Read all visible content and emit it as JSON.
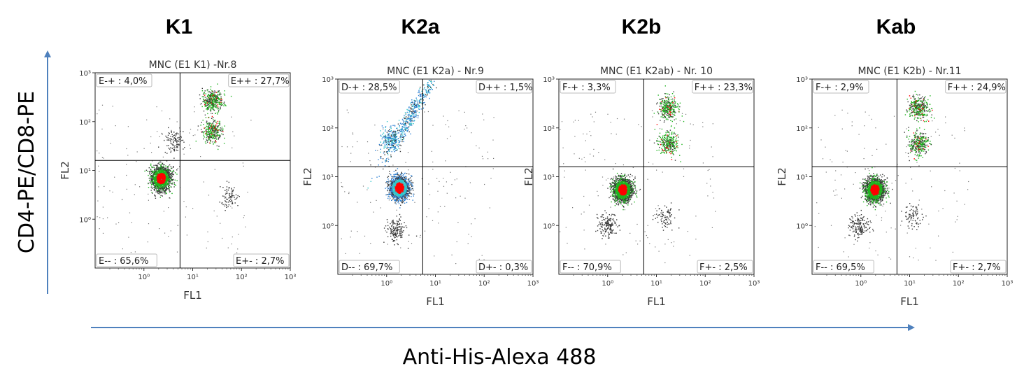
{
  "x_axis_label": "Anti-His-Alexa 488",
  "y_axis_label": "CD4-PE/CD8-PE",
  "colors": {
    "arrow": "#4f81bd",
    "frame": "#222222",
    "dot_dark": "#3a3a3a",
    "dot_green": "#1fb31f",
    "dot_blue": "#2a7fd4",
    "dot_cyan": "#33c6cc",
    "dot_red": "#ff0000"
  },
  "chart_data": [
    {
      "type": "scatter",
      "group_title": "K1",
      "title": "MNC (E1 K1) -Nr.8",
      "xlabel": "FL1",
      "ylabel": "FL2",
      "x_scale": "log",
      "y_scale": "log",
      "xlim": [
        0.1,
        1000
      ],
      "ylim": [
        0.1,
        1000
      ],
      "x_tick_labels": [
        "10⁰",
        "10¹",
        "10²",
        "10³"
      ],
      "y_tick_labels": [
        "10⁰",
        "10¹",
        "10²",
        "10³"
      ],
      "quadrant_gate": {
        "x": 5.5,
        "y": 16
      },
      "quadrants": {
        "upper_left": "E-+ : 4,0%",
        "upper_right": "E++ : 27,7%",
        "lower_left": "E-- : 65,6%",
        "lower_right": "E+- : 2,7%"
      },
      "populations": [
        {
          "x": 2.2,
          "y": 7,
          "share": 0.62,
          "colored": "red-green"
        },
        {
          "x": 25,
          "y": 270,
          "share": 0.14,
          "colored": "green"
        },
        {
          "x": 25,
          "y": 65,
          "share": 0.12,
          "colored": "green"
        },
        {
          "x": 55,
          "y": 3,
          "share": 0.03,
          "colored": "grey"
        },
        {
          "x": 4,
          "y": 40,
          "share": 0.04,
          "colored": "grey"
        }
      ]
    },
    {
      "type": "scatter",
      "group_title": "K2a",
      "title": "MNC (E1 K2a) - Nr.9",
      "xlabel": "FL1",
      "ylabel": "FL2",
      "x_scale": "log",
      "y_scale": "log",
      "xlim": [
        0.1,
        1000
      ],
      "ylim": [
        0.1,
        1000
      ],
      "x_tick_labels": [
        "10⁰",
        "10¹",
        "10²",
        "10³"
      ],
      "y_tick_labels": [
        "10⁰",
        "10¹",
        "10²",
        "10³"
      ],
      "quadrant_gate": {
        "x": 5.5,
        "y": 16
      },
      "quadrants": {
        "upper_left": "D-+ : 28,5%",
        "upper_right": "D++ : 1,5%",
        "lower_left": "D-- : 69,7%",
        "lower_right": "D+- : 0,3%"
      },
      "populations": [
        {
          "x": 1.8,
          "y": 6,
          "share": 0.62,
          "colored": "red-blue"
        },
        {
          "x": 3.2,
          "y": 200,
          "share": 0.2,
          "colored": "blue",
          "diagonal": true
        },
        {
          "x": 1.2,
          "y": 60,
          "share": 0.08,
          "colored": "blue"
        },
        {
          "x": 1.5,
          "y": 0.8,
          "share": 0.06,
          "colored": "grey"
        }
      ]
    },
    {
      "type": "scatter",
      "group_title": "K2b",
      "title": "MNC (E1 K2ab) - Nr. 10",
      "xlabel": "FL1",
      "ylabel": "FL2",
      "x_scale": "log",
      "y_scale": "log",
      "xlim": [
        0.1,
        1000
      ],
      "ylim": [
        0.1,
        1000
      ],
      "x_tick_labels": [
        "10⁰",
        "10¹",
        "10²",
        "10³"
      ],
      "y_tick_labels": [
        "10⁰",
        "10¹",
        "10²",
        "10³"
      ],
      "quadrant_gate": {
        "x": 5.5,
        "y": 16
      },
      "quadrants": {
        "upper_left": "F-+ : 3,3%",
        "upper_right": "F++ : 23,3%",
        "lower_left": "F-- : 70,9%",
        "lower_right": "F+- : 2,5%"
      },
      "populations": [
        {
          "x": 2,
          "y": 5.5,
          "share": 0.64,
          "colored": "red-green"
        },
        {
          "x": 17,
          "y": 260,
          "share": 0.12,
          "colored": "green"
        },
        {
          "x": 17,
          "y": 48,
          "share": 0.11,
          "colored": "green"
        },
        {
          "x": 15,
          "y": 1.5,
          "share": 0.03,
          "colored": "grey"
        },
        {
          "x": 1,
          "y": 1,
          "share": 0.06,
          "colored": "grey"
        }
      ]
    },
    {
      "type": "scatter",
      "group_title": "Kab",
      "title": "MNC (E1 K2b) - Nr.11",
      "xlabel": "FL1",
      "ylabel": "FL2",
      "x_scale": "log",
      "y_scale": "log",
      "xlim": [
        0.1,
        1000
      ],
      "ylim": [
        0.1,
        1000
      ],
      "x_tick_labels": [
        "10⁰",
        "10¹",
        "10²",
        "10³"
      ],
      "y_tick_labels": [
        "10⁰",
        "10¹",
        "10²",
        "10³"
      ],
      "quadrant_gate": {
        "x": 5.5,
        "y": 16
      },
      "quadrants": {
        "upper_left": "F-+ : 2,9%",
        "upper_right": "F++ : 24,9%",
        "lower_left": "F-- : 69,5%",
        "lower_right": "F+- : 2,7%"
      },
      "populations": [
        {
          "x": 1.9,
          "y": 5.5,
          "share": 0.63,
          "colored": "red-green"
        },
        {
          "x": 15,
          "y": 260,
          "share": 0.13,
          "colored": "green"
        },
        {
          "x": 15,
          "y": 48,
          "share": 0.12,
          "colored": "green"
        },
        {
          "x": 12,
          "y": 1.6,
          "share": 0.03,
          "colored": "grey"
        },
        {
          "x": 0.9,
          "y": 1,
          "share": 0.06,
          "colored": "grey"
        }
      ]
    }
  ]
}
